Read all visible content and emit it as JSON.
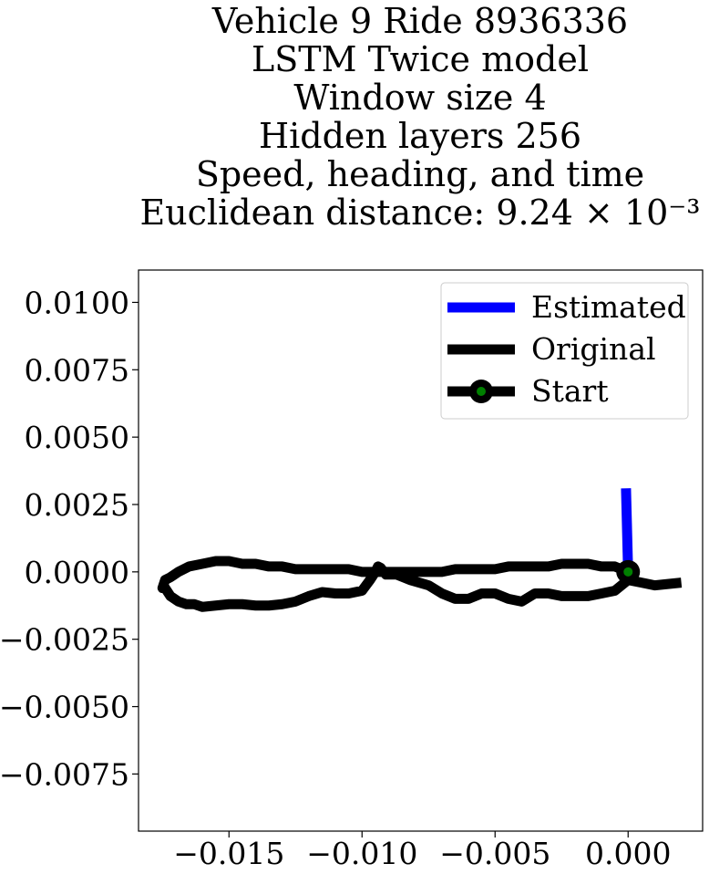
{
  "chart_data": {
    "type": "line",
    "title_lines": [
      "Vehicle 9 Ride 8936336",
      "LSTM Twice model",
      "Window size 4",
      "Hidden layers 256",
      "Speed, heading, and time",
      "Euclidean distance: 9.24 × 10⁻³"
    ],
    "xlabel": "",
    "ylabel": "",
    "xlim": [
      -0.0184,
      0.0028
    ],
    "ylim": [
      -0.00962,
      0.0112
    ],
    "x_ticks": [
      -0.015,
      -0.01,
      -0.005,
      0.0
    ],
    "x_tick_labels": [
      "−0.015",
      "−0.010",
      "−0.005",
      "0.000"
    ],
    "y_ticks": [
      0.01,
      0.0075,
      0.005,
      0.0025,
      0.0,
      -0.0025,
      -0.005,
      -0.0075
    ],
    "y_tick_labels": [
      "0.0100",
      "0.0075",
      "0.0050",
      "0.0025",
      "0.0000",
      "−0.0025",
      "−0.0050",
      "−0.0075"
    ],
    "grid": false,
    "legend_position": "top-right",
    "series": [
      {
        "name": "Estimated",
        "color": "#0000ff",
        "x": [
          0.0,
          -8e-05
        ],
        "y": [
          0.0,
          0.0031
        ]
      },
      {
        "name": "Original",
        "color": "#000000",
        "x": [
          0.002,
          0.0015,
          0.001,
          0.0005,
          0.0,
          -0.0005,
          -0.001,
          -0.0015,
          -0.002,
          -0.0025,
          -0.003,
          -0.0035,
          -0.004,
          -0.0045,
          -0.005,
          -0.0055,
          -0.006,
          -0.0065,
          -0.007,
          -0.0075,
          -0.0082,
          -0.0087,
          -0.0091,
          -0.0093,
          -0.0094,
          -0.0095,
          -0.0097,
          -0.01,
          -0.0105,
          -0.011,
          -0.0115,
          -0.012,
          -0.0125,
          -0.013,
          -0.0135,
          -0.014,
          -0.0145,
          -0.015,
          -0.0155,
          -0.016,
          -0.0163,
          -0.0166,
          -0.0169,
          -0.0172,
          -0.0174,
          -0.0175,
          -0.0174,
          -0.0172,
          -0.0169,
          -0.0165,
          -0.016,
          -0.0155,
          -0.015,
          -0.0145,
          -0.014,
          -0.0135,
          -0.013,
          -0.0125,
          -0.012,
          -0.0115,
          -0.011,
          -0.0105,
          -0.01,
          -0.0097,
          -0.0095,
          -0.0094,
          -0.0093,
          -0.0092,
          -0.0091,
          -0.009,
          -0.0088,
          -0.0085,
          -0.008,
          -0.0075,
          -0.007,
          -0.0065,
          -0.006,
          -0.0055,
          -0.005,
          -0.0045,
          -0.004,
          -0.0035,
          -0.003,
          -0.0025,
          -0.002,
          -0.0015,
          -0.001,
          -0.0005,
          0.0
        ],
        "y": [
          -0.0004,
          -0.00045,
          -0.0005,
          -0.0004,
          -0.0003,
          -0.0007,
          -0.0008,
          -0.0009,
          -0.0009,
          -0.0009,
          -0.0008,
          -0.0008,
          -0.0011,
          -0.001,
          -0.0008,
          -0.0008,
          -0.001,
          -0.001,
          -0.0008,
          -0.0005,
          -0.0003,
          -0.0001,
          -0.0001,
          0.00015,
          0.0002,
          0.0,
          -0.0003,
          -0.0007,
          -0.0008,
          -0.0008,
          -0.00075,
          -0.0009,
          -0.0011,
          -0.0012,
          -0.00125,
          -0.00125,
          -0.0012,
          -0.0012,
          -0.00125,
          -0.0013,
          -0.0012,
          -0.0012,
          -0.0011,
          -0.0009,
          -0.0006,
          -0.0006,
          -0.0003,
          -0.0002,
          0.0,
          0.0002,
          0.0003,
          0.0004,
          0.0004,
          0.0003,
          0.0003,
          0.0002,
          0.0002,
          0.0001,
          0.0001,
          0.0001,
          0.0001,
          0.0001,
          0.0,
          0.0,
          0.0,
          0.0,
          0.0,
          0.0,
          0.0,
          0.0,
          0.0,
          0.0,
          0.0,
          0.0,
          0.0,
          0.0001,
          0.0001,
          0.0001,
          0.0001,
          0.0002,
          0.0002,
          0.0002,
          0.0002,
          0.0003,
          0.0003,
          0.0003,
          0.0002,
          0.0002,
          0.0
        ]
      },
      {
        "name": "Start",
        "color": "#008000",
        "x": [
          0.0
        ],
        "y": [
          0.0
        ]
      }
    ]
  }
}
